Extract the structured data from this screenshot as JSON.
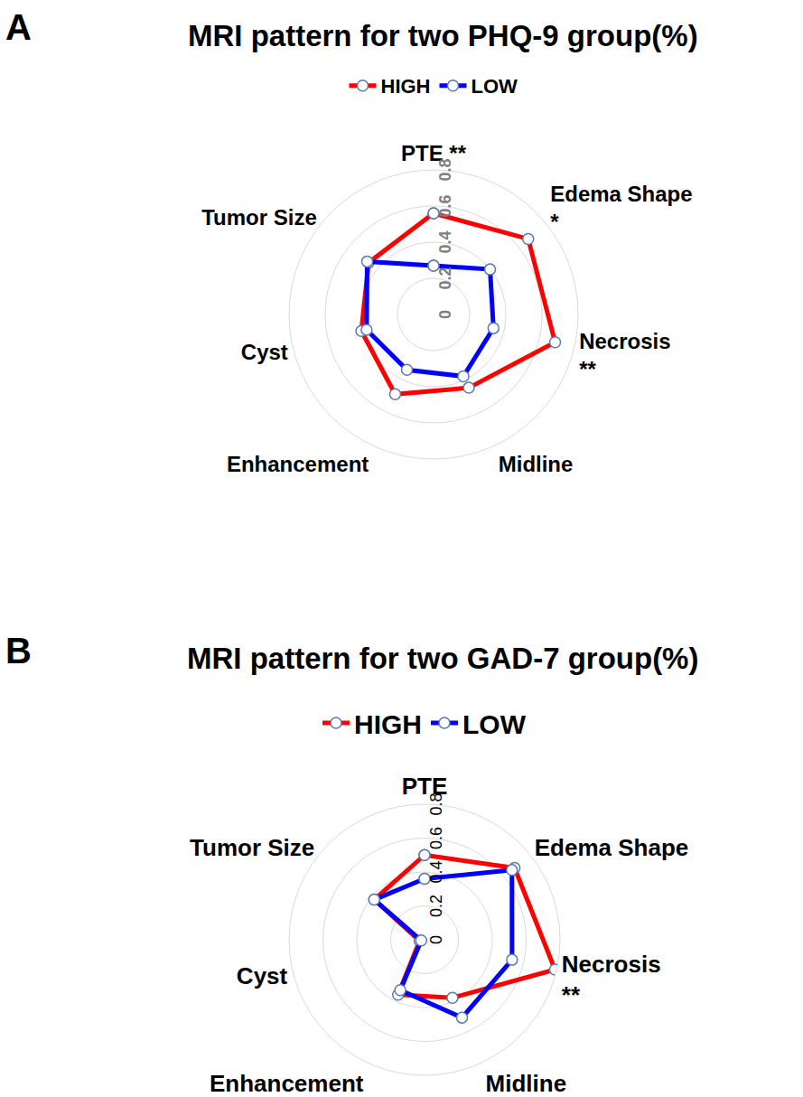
{
  "chart_data": [
    {
      "type": "radar",
      "panel": "A",
      "title": "MRI pattern for two PHQ-9 group(%)",
      "categories": [
        "PTE **",
        "Edema Shape\n*",
        "Necrosis\n**",
        "Midline",
        "Enhancement",
        "Cyst",
        "Tumor Size"
      ],
      "series": [
        {
          "name": "HIGH",
          "color": "#ff0000",
          "values": [
            0.56,
            0.67,
            0.69,
            0.45,
            0.49,
            0.41,
            0.46
          ]
        },
        {
          "name": "LOW",
          "color": "#0000ff",
          "values": [
            0.27,
            0.4,
            0.34,
            0.38,
            0.34,
            0.38,
            0.47
          ]
        }
      ],
      "ylim": [
        0,
        0.8
      ],
      "yticks": [
        0,
        0.2,
        0.4,
        0.6,
        0.8
      ],
      "grid": true,
      "marker": "circle"
    },
    {
      "type": "radar",
      "panel": "B",
      "title": "MRI pattern for two GAD-7 group(%)",
      "categories": [
        "PTE",
        "Edema Shape",
        "Necrosis\n**",
        "Midline",
        "Enhancement",
        "Cyst",
        "Tumor Size"
      ],
      "series": [
        {
          "name": "HIGH",
          "color": "#ff0000",
          "values": [
            0.5,
            0.68,
            0.79,
            0.38,
            0.36,
            0.03,
            0.38
          ]
        },
        {
          "name": "LOW",
          "color": "#0000ff",
          "values": [
            0.36,
            0.66,
            0.53,
            0.51,
            0.33,
            0.02,
            0.38
          ]
        }
      ],
      "ylim": [
        0,
        0.8
      ],
      "yticks": [
        0,
        0.2,
        0.4,
        0.6,
        0.8
      ],
      "grid": true,
      "marker": "circle"
    }
  ]
}
